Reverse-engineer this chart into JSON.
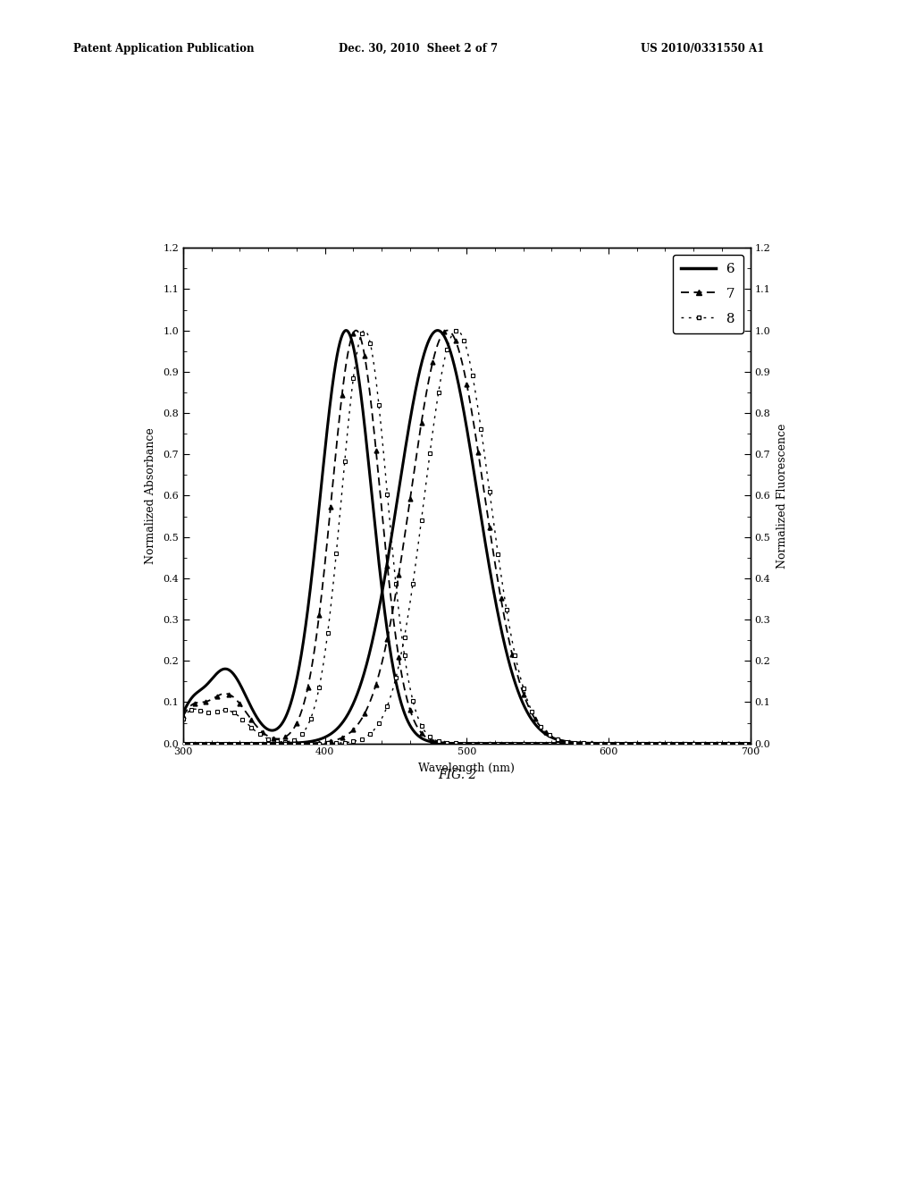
{
  "title_left": "Normalized Absorbance",
  "title_right": "Normalized Fluorescence",
  "xlabel": "Wavelength (nm)",
  "fig_caption": "FIG. 2",
  "header_left": "Patent Application Publication",
  "header_mid": "Dec. 30, 2010  Sheet 2 of 7",
  "header_right": "US 2010/0331550 A1",
  "xmin": 300,
  "xmax": 700,
  "ymin": 0.0,
  "ymax": 1.2,
  "yticks": [
    0.0,
    0.1,
    0.2,
    0.3,
    0.4,
    0.5,
    0.6,
    0.7,
    0.8,
    0.9,
    1.0,
    1.1,
    1.2
  ],
  "xticks": [
    300,
    400,
    500,
    600,
    700
  ],
  "bg_color": "#ffffff",
  "abs6_peak": 415,
  "abs7_peak": 422,
  "abs8_peak": 428,
  "em6_peak": 478,
  "em7_peak": 485,
  "em8_peak": 492,
  "abs_sigma": 18,
  "em_sigma": 22,
  "shoulder_nm": 330,
  "shoulder_amp": 0.18,
  "shoulder_sigma": 15
}
